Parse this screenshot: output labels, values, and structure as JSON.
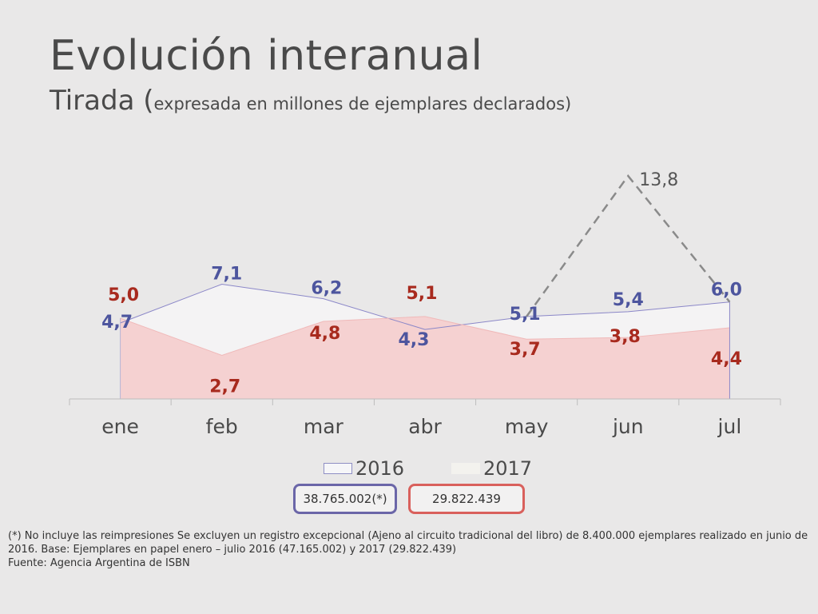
{
  "header": {
    "title": "Evolución interanual",
    "subtitle_main": "Tirada (",
    "subtitle_detail": "expresada en millones de ejemplares declarados)"
  },
  "legend": {
    "items": [
      {
        "label": "2016",
        "color": "#f6f6f8",
        "border": "#8f8fc4"
      },
      {
        "label": "2017",
        "color": "#f3f2ee",
        "border": "#f3f2ee"
      }
    ]
  },
  "totals": {
    "total_2016": "38.765.002(*)",
    "total_2017": "29.822.439"
  },
  "footnote": {
    "line1": "(*) No incluye las reimpresiones Se excluyen un registro excepcional (Ajeno al circuito tradicional del libro) de 8.400.000 ejemplares realizado en junio de 2016. Base: Ejemplares en papel enero – julio 2016 (47.165.002) y 2017  (29.822.439)",
    "line2": "Fuente:  Agencia Argentina de ISBN"
  },
  "chart_data": {
    "type": "area",
    "categories": [
      "ene",
      "feb",
      "mar",
      "abr",
      "may",
      "jun",
      "jul"
    ],
    "series": [
      {
        "name": "2016",
        "values": [
          4.7,
          7.1,
          6.2,
          4.3,
          5.1,
          5.4,
          6.0
        ],
        "labels": [
          "4,7",
          "7,1",
          "6,2",
          "4,3",
          "5,1",
          "5,4",
          "6,0"
        ],
        "fill": "#f4f3f4",
        "line": "#8b87c8",
        "label_color": "#4d559e"
      },
      {
        "name": "2017",
        "values": [
          5.0,
          2.7,
          4.8,
          5.1,
          3.7,
          3.8,
          4.4
        ],
        "labels": [
          "5,0",
          "2,7",
          "4,8",
          "5,1",
          "3,7",
          "3,8",
          "4,4"
        ],
        "fill": "#f5d1d1",
        "line": "#f0b9b9",
        "label_color": "#a82a1e"
      }
    ],
    "exceptional": {
      "points": [
        {
          "category": "may",
          "value": 5.1
        },
        {
          "category": "jun",
          "value": 13.8
        },
        {
          "category": "jul",
          "value": 6.0
        }
      ],
      "label": "13,8",
      "color": "#8a8a8a"
    },
    "ylim": [
      0,
      14
    ],
    "grid": false
  }
}
